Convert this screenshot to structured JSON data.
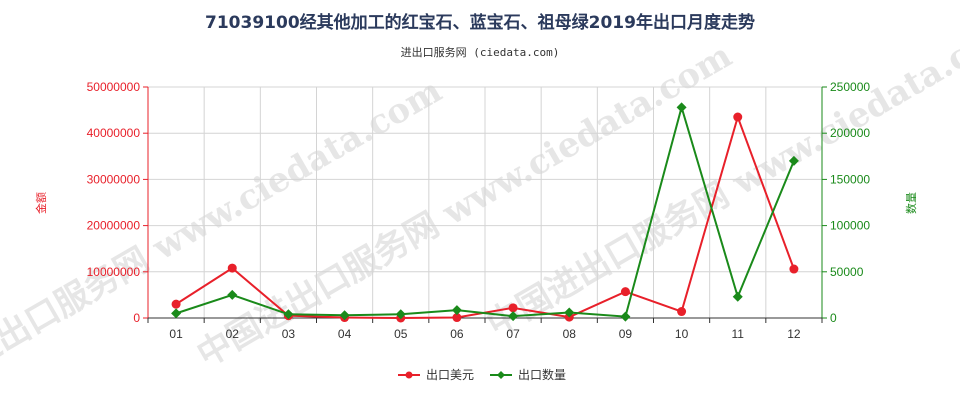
{
  "chart_data": {
    "type": "line",
    "title": "71039100经其他加工的红宝石、蓝宝石、祖母绿2019年出口月度走势",
    "subtitle": "进出口服务网 (ciedata.com)",
    "watermark": "中国进出口服务网 www.ciedata.com",
    "categories": [
      "01",
      "02",
      "03",
      "04",
      "05",
      "06",
      "07",
      "08",
      "09",
      "10",
      "11",
      "12"
    ],
    "left_axis": {
      "label": "金额",
      "ylim": [
        0,
        50000000
      ],
      "ticks": [
        "0",
        "10000000",
        "20000000",
        "30000000",
        "40000000",
        "50000000"
      ],
      "color": "#e8202a"
    },
    "right_axis": {
      "label": "数量",
      "ylim": [
        0,
        250000
      ],
      "ticks": [
        "0",
        "50000",
        "100000",
        "150000",
        "200000",
        "250000"
      ],
      "color": "#1a8a1a"
    },
    "series": [
      {
        "name": "出口美元",
        "axis": "left",
        "color": "#e8202a",
        "marker": "circle",
        "values": [
          3000000,
          10800000,
          500000,
          100000,
          0,
          100000,
          2200000,
          200000,
          5700000,
          1400000,
          43500000,
          10600000
        ]
      },
      {
        "name": "出口数量",
        "axis": "right",
        "color": "#1a8a1a",
        "marker": "diamond",
        "values": [
          5000,
          25000,
          4000,
          3000,
          4000,
          8500,
          2000,
          6000,
          1500,
          228000,
          23000,
          170000
        ]
      }
    ],
    "grid": true,
    "legend_position": "bottom-center"
  }
}
